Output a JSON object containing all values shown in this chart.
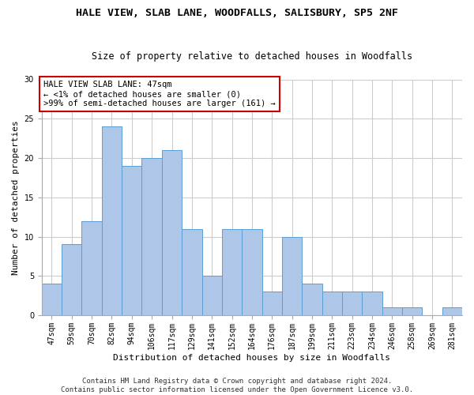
{
  "title": "HALE VIEW, SLAB LANE, WOODFALLS, SALISBURY, SP5 2NF",
  "subtitle": "Size of property relative to detached houses in Woodfalls",
  "xlabel": "Distribution of detached houses by size in Woodfalls",
  "ylabel": "Number of detached properties",
  "categories": [
    "47sqm",
    "59sqm",
    "70sqm",
    "82sqm",
    "94sqm",
    "106sqm",
    "117sqm",
    "129sqm",
    "141sqm",
    "152sqm",
    "164sqm",
    "176sqm",
    "187sqm",
    "199sqm",
    "211sqm",
    "223sqm",
    "234sqm",
    "246sqm",
    "258sqm",
    "269sqm",
    "281sqm"
  ],
  "values": [
    4,
    9,
    12,
    24,
    19,
    20,
    21,
    11,
    5,
    11,
    11,
    3,
    10,
    4,
    3,
    3,
    3,
    1,
    1,
    0,
    1
  ],
  "bar_color": "#aec6e8",
  "bar_edge_color": "#5a9fd4",
  "annotation_box_text": "HALE VIEW SLAB LANE: 47sqm\n← <1% of detached houses are smaller (0)\n>99% of semi-detached houses are larger (161) →",
  "annotation_box_color": "#ffffff",
  "annotation_box_edge_color": "#cc0000",
  "highlight_bar_index": 0,
  "ylim": [
    0,
    30
  ],
  "yticks": [
    0,
    5,
    10,
    15,
    20,
    25,
    30
  ],
  "footer_text": "Contains HM Land Registry data © Crown copyright and database right 2024.\nContains public sector information licensed under the Open Government Licence v3.0.",
  "bg_color": "#ffffff",
  "grid_color": "#cccccc",
  "title_fontsize": 9.5,
  "subtitle_fontsize": 8.5,
  "axis_label_fontsize": 8,
  "tick_fontsize": 7,
  "footer_fontsize": 6.5,
  "annotation_fontsize": 7.5
}
